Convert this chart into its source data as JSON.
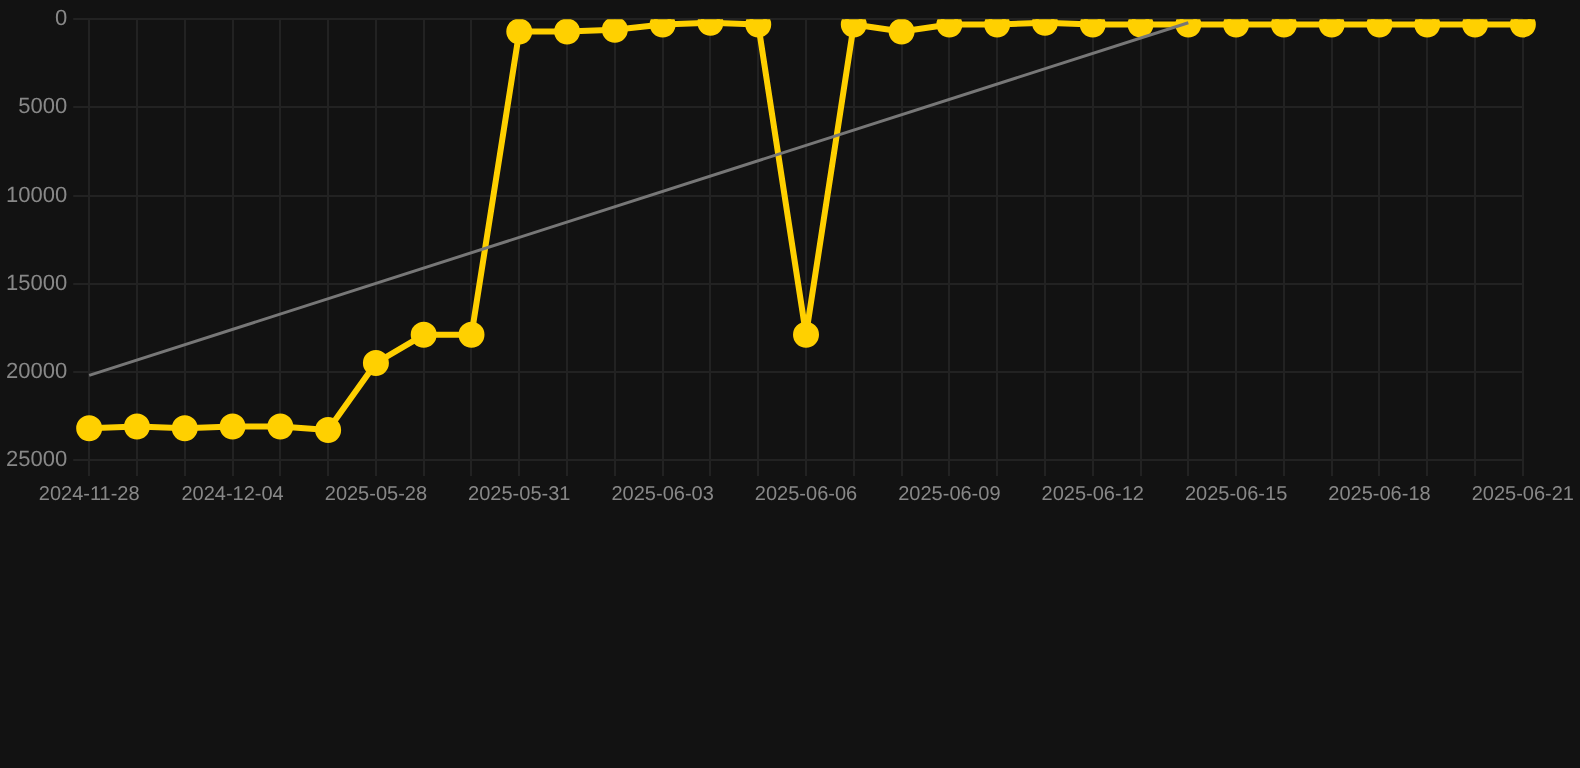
{
  "chart_data": {
    "type": "line",
    "categories": [
      "2024-11-28",
      null,
      null,
      "2024-12-04",
      null,
      null,
      "2025-05-28",
      null,
      null,
      "2025-05-31",
      null,
      null,
      "2025-06-03",
      null,
      null,
      "2025-06-06",
      null,
      null,
      "2025-06-09",
      null,
      null,
      "2025-06-12",
      null,
      null,
      "2025-06-15",
      null,
      null,
      "2025-06-18",
      null,
      null,
      "2025-06-21"
    ],
    "series": [
      {
        "color": "#ffd000",
        "values": [
          23200,
          23100,
          23200,
          23100,
          23100,
          23300,
          19500,
          17900,
          17900,
          700,
          700,
          600,
          300,
          200,
          300,
          17900,
          300,
          700,
          300,
          300,
          200,
          300,
          300,
          300,
          300,
          300,
          300,
          300,
          300,
          300,
          300
        ]
      },
      {
        "marker": "none",
        "color": "#777777",
        "values": [
          20200,
          null,
          null,
          null,
          null,
          null,
          null,
          null,
          null,
          null,
          null,
          null,
          null,
          null,
          null,
          null,
          null,
          null,
          null,
          null,
          null,
          null,
          null,
          200,
          null,
          null,
          null,
          null,
          null,
          null,
          null
        ]
      }
    ],
    "ylim": [
      25000,
      0
    ],
    "yticks": [
      0,
      5000,
      10000,
      15000,
      20000,
      25000
    ],
    "grid": true,
    "marker": "circle",
    "line_style": "solid",
    "legend": false
  }
}
